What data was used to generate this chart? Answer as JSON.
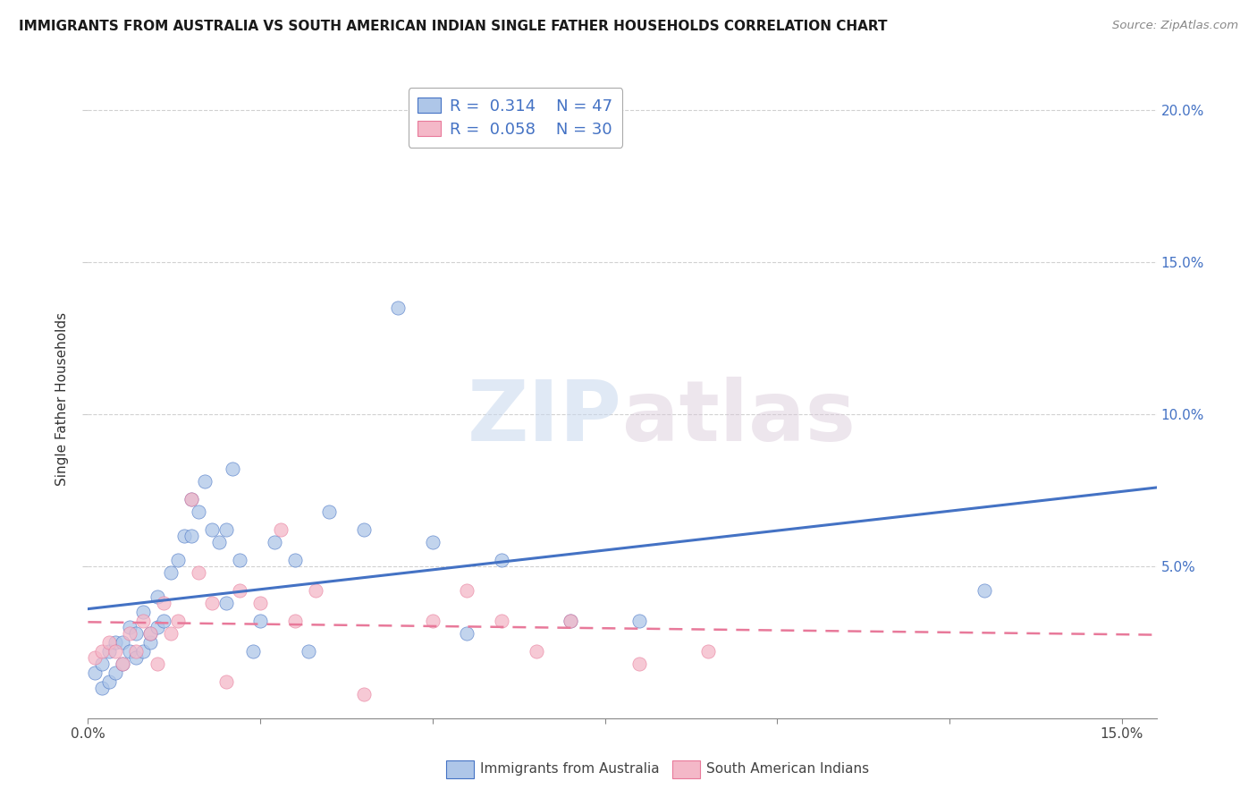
{
  "title": "IMMIGRANTS FROM AUSTRALIA VS SOUTH AMERICAN INDIAN SINGLE FATHER HOUSEHOLDS CORRELATION CHART",
  "source": "Source: ZipAtlas.com",
  "ylabel": "Single Father Households",
  "legend_items": [
    {
      "label": "Immigrants from Australia",
      "color": "#aec6e8",
      "edge": "#6a9fd8",
      "R": "0.314",
      "N": "47"
    },
    {
      "label": "South American Indians",
      "color": "#f4b8c8",
      "edge": "#e8799a",
      "R": "0.058",
      "N": "30"
    }
  ],
  "blue_scatter_x": [
    0.001,
    0.002,
    0.002,
    0.003,
    0.003,
    0.004,
    0.004,
    0.005,
    0.005,
    0.006,
    0.006,
    0.007,
    0.007,
    0.008,
    0.008,
    0.009,
    0.009,
    0.01,
    0.01,
    0.011,
    0.012,
    0.013,
    0.014,
    0.015,
    0.015,
    0.016,
    0.017,
    0.018,
    0.019,
    0.02,
    0.02,
    0.021,
    0.022,
    0.024,
    0.025,
    0.027,
    0.03,
    0.032,
    0.035,
    0.04,
    0.045,
    0.05,
    0.055,
    0.06,
    0.07,
    0.08,
    0.13
  ],
  "blue_scatter_y": [
    0.015,
    0.01,
    0.018,
    0.012,
    0.022,
    0.015,
    0.025,
    0.018,
    0.025,
    0.022,
    0.03,
    0.028,
    0.02,
    0.035,
    0.022,
    0.025,
    0.028,
    0.03,
    0.04,
    0.032,
    0.048,
    0.052,
    0.06,
    0.06,
    0.072,
    0.068,
    0.078,
    0.062,
    0.058,
    0.062,
    0.038,
    0.082,
    0.052,
    0.022,
    0.032,
    0.058,
    0.052,
    0.022,
    0.068,
    0.062,
    0.135,
    0.058,
    0.028,
    0.052,
    0.032,
    0.032,
    0.042
  ],
  "pink_scatter_x": [
    0.001,
    0.002,
    0.003,
    0.004,
    0.005,
    0.006,
    0.007,
    0.008,
    0.009,
    0.01,
    0.011,
    0.012,
    0.013,
    0.015,
    0.016,
    0.018,
    0.02,
    0.022,
    0.025,
    0.028,
    0.03,
    0.033,
    0.04,
    0.05,
    0.055,
    0.06,
    0.065,
    0.07,
    0.08,
    0.09
  ],
  "pink_scatter_y": [
    0.02,
    0.022,
    0.025,
    0.022,
    0.018,
    0.028,
    0.022,
    0.032,
    0.028,
    0.018,
    0.038,
    0.028,
    0.032,
    0.072,
    0.048,
    0.038,
    0.012,
    0.042,
    0.038,
    0.062,
    0.032,
    0.042,
    0.008,
    0.032,
    0.042,
    0.032,
    0.022,
    0.032,
    0.018,
    0.022
  ],
  "xlim": [
    0.0,
    0.155
  ],
  "ylim": [
    0.0,
    0.21
  ],
  "blue_line_color": "#4472c4",
  "pink_line_color": "#e8799a",
  "scatter_blue_color": "#aec6e8",
  "scatter_pink_color": "#f4b8c8",
  "watermark_zip": "ZIP",
  "watermark_atlas": "atlas",
  "background_color": "#ffffff",
  "grid_color": "#cccccc",
  "right_yticks": [
    0.05,
    0.1,
    0.15,
    0.2
  ],
  "right_yticklabels": [
    "5.0%",
    "10.0%",
    "15.0%",
    "20.0%"
  ]
}
